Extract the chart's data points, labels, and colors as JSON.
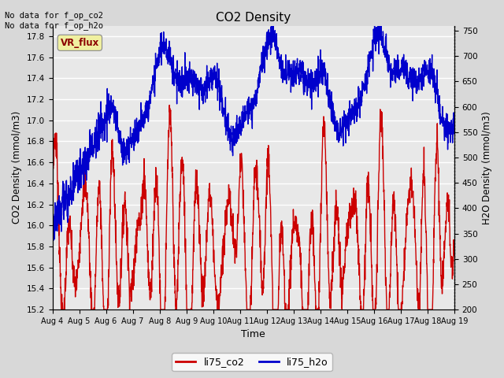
{
  "title": "CO2 Density",
  "xlabel": "Time",
  "ylabel_left": "CO2 Density (mmol/m3)",
  "ylabel_right": "H2O Density (mmol/m3)",
  "annotation_text": "No data for f_op_co2\nNo data for f_op_h2o",
  "legend_label1": "li75_co2",
  "legend_label2": "li75_h2o",
  "vr_flux_label": "VR_flux",
  "ylim_left": [
    15.2,
    17.9
  ],
  "ylim_right": [
    200,
    760
  ],
  "color_co2": "#cc0000",
  "color_h2o": "#0000cc",
  "bg_color": "#d8d8d8",
  "plot_bg_color": "#e8e8e8",
  "linewidth": 1.0,
  "xmin": 0,
  "xmax": 15,
  "x_tick_labels": [
    "Aug 4",
    "Aug 5",
    "Aug 6",
    "Aug 7",
    "Aug 8",
    "Aug 9",
    "Aug 10",
    "Aug 11",
    "Aug 12",
    "Aug 13",
    "Aug 14",
    "Aug 15",
    "Aug 16",
    "Aug 17",
    "Aug 18",
    "Aug 19"
  ],
  "x_tick_positions": [
    0,
    1,
    2,
    3,
    4,
    5,
    6,
    7,
    8,
    9,
    10,
    11,
    12,
    13,
    14,
    15
  ]
}
